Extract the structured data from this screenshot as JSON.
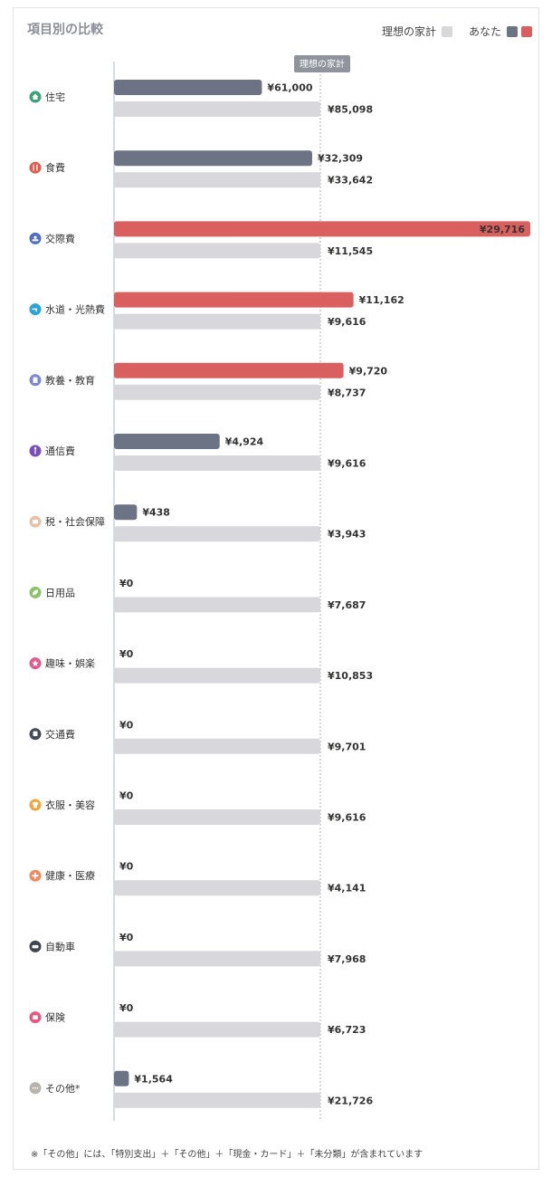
{
  "chart_data": {
    "type": "bar",
    "title": "項目別の比較",
    "legend": {
      "ideal_label": "理想の家計",
      "you_label": "あなた",
      "placement": "top-right"
    },
    "reference_label": "理想の家計",
    "currency_prefix": "¥",
    "colors": {
      "you_under": "#6b7385",
      "you_over": "#d9605f",
      "ideal": "#d7d7dc",
      "axis": "#b8c4dc",
      "reference_line": "#b0b0b0",
      "reference_tag": "#8e939c"
    },
    "categories": [
      "住宅",
      "食費",
      "交際費",
      "水道・光熱費",
      "教養・教育",
      "通信費",
      "税・社会保障",
      "日用品",
      "趣味・娯楽",
      "交通費",
      "衣服・美容",
      "健康・医療",
      "自動車",
      "保険",
      "その他*"
    ],
    "category_icons": [
      {
        "name": "house-icon",
        "color": "#3aa37a"
      },
      {
        "name": "fork-icon",
        "color": "#e25a4e"
      },
      {
        "name": "people-icon",
        "color": "#4f6fc0"
      },
      {
        "name": "faucet-icon",
        "color": "#2aa3d8"
      },
      {
        "name": "book-icon",
        "color": "#7d86d6"
      },
      {
        "name": "antenna-icon",
        "color": "#7a4fb8"
      },
      {
        "name": "yen-icon",
        "color": "#e8c2a6"
      },
      {
        "name": "leaf-icon",
        "color": "#8cc36a"
      },
      {
        "name": "star-icon",
        "color": "#e45a8e"
      },
      {
        "name": "train-icon",
        "color": "#444a5a"
      },
      {
        "name": "shirt-icon",
        "color": "#f3a53a"
      },
      {
        "name": "cross-icon",
        "color": "#f08a5d"
      },
      {
        "name": "car-icon",
        "color": "#3f4452"
      },
      {
        "name": "shield-icon",
        "color": "#e8577f"
      },
      {
        "name": "dots-icon",
        "color": "#b8b3ad"
      }
    ],
    "series": [
      {
        "name": "あなた",
        "values": [
          61000,
          32309,
          29716,
          11162,
          9720,
          4924,
          438,
          0,
          0,
          0,
          0,
          0,
          0,
          0,
          1564
        ],
        "labels": [
          "¥61,000",
          "¥32,309",
          "¥29,716",
          "¥11,162",
          "¥9,720",
          "¥4,924",
          "¥438",
          "¥0",
          "¥0",
          "¥0",
          "¥0",
          "¥0",
          "¥0",
          "¥0",
          "¥1,564"
        ]
      },
      {
        "name": "理想の家計",
        "values": [
          85098,
          33642,
          11545,
          9616,
          8737,
          9616,
          3943,
          7687,
          10853,
          9701,
          9616,
          4141,
          7968,
          6723,
          21726
        ],
        "labels": [
          "¥85,098",
          "¥33,642",
          "¥11,545",
          "¥9,616",
          "¥8,737",
          "¥9,616",
          "¥3,943",
          "¥7,687",
          "¥10,853",
          "¥9,701",
          "¥9,616",
          "¥4,141",
          "¥7,968",
          "¥6,723",
          "¥21,726"
        ]
      }
    ]
  },
  "footnote": "※「その他」には、「特別支出」＋「その他」＋「現金・カード」＋「未分類」が含まれています"
}
